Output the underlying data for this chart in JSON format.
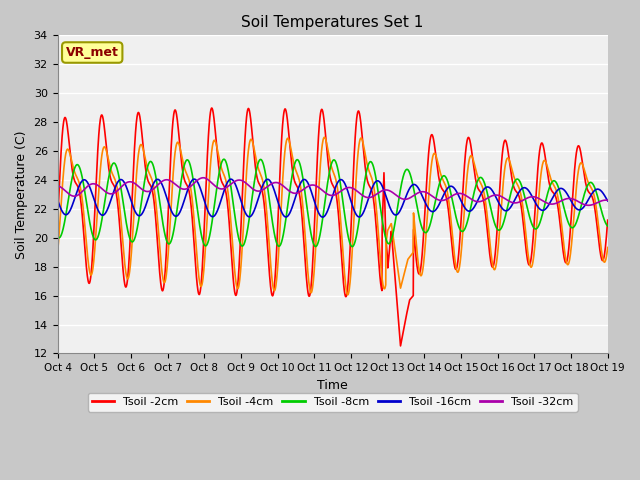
{
  "title": "Soil Temperatures Set 1",
  "xlabel": "Time",
  "ylabel": "Soil Temperature (C)",
  "ylim": [
    12,
    34
  ],
  "xlim": [
    0,
    15
  ],
  "fig_bg_color": "#c8c8c8",
  "plot_bg_color": "#f0f0f0",
  "annotation_text": "VR_met",
  "annotation_bg": "#ffff99",
  "annotation_border": "#999900",
  "colors": {
    "Tsoil -2cm": "#ff0000",
    "Tsoil -4cm": "#ff8800",
    "Tsoil -8cm": "#00cc00",
    "Tsoil -16cm": "#0000cc",
    "Tsoil -32cm": "#aa00aa"
  },
  "x_tick_labels": [
    "Oct 4",
    "Oct 5",
    "Oct 6",
    "Oct 7",
    "Oct 8",
    "Oct 9",
    "Oct 10",
    "Oct 11",
    "Oct 12",
    "Oct 13",
    "Oct 14",
    "Oct 15",
    "Oct 16",
    "Oct 17",
    "Oct 18",
    "Oct 19"
  ],
  "yticks": [
    12,
    14,
    16,
    18,
    20,
    22,
    24,
    26,
    28,
    30,
    32,
    34
  ],
  "linewidth": 1.2
}
